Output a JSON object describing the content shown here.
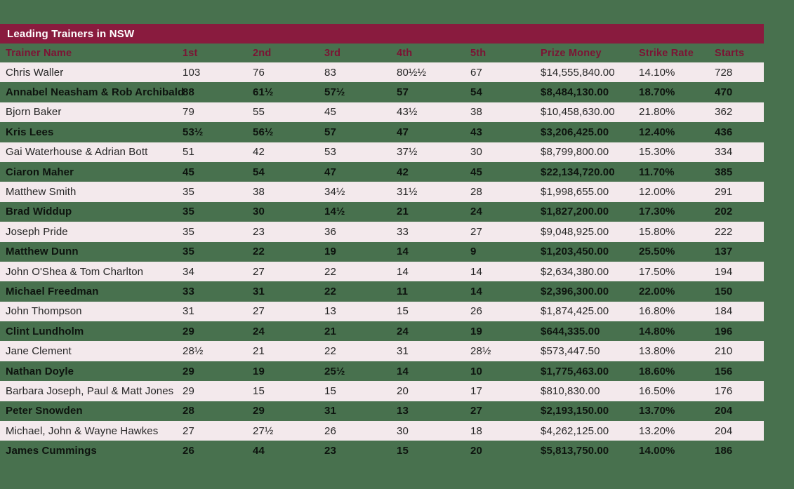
{
  "colors": {
    "background": "#48714e",
    "title_bar": "#891b3e",
    "title_text": "#ffffff",
    "header_text": "#7c1334",
    "row_light": "#f3e9ec",
    "row_light_text": "#262626",
    "row_dark_text": "#0d130e"
  },
  "chart_data": {
    "type": "table",
    "title": "Leading Trainers in NSW",
    "column_keys": [
      "trainer-name",
      "first",
      "second",
      "third",
      "fourth",
      "fifth",
      "prize-money",
      "strike-rate",
      "starts"
    ],
    "columns": [
      "Trainer Name",
      "1st",
      "2nd",
      "3rd",
      "4th",
      "5th",
      "Prize Money",
      "Strike Rate",
      "Starts"
    ],
    "rows": [
      [
        "Chris Waller",
        "103",
        "76",
        "83",
        "80½½",
        "67",
        "$14,555,840.00",
        "14.10%",
        "728"
      ],
      [
        "Annabel Neasham & Rob Archibald",
        "88",
        "61½",
        "57½",
        "57",
        "54",
        "$8,484,130.00",
        "18.70%",
        "470"
      ],
      [
        "Bjorn Baker",
        "79",
        "55",
        "45",
        "43½",
        "38",
        "$10,458,630.00",
        "21.80%",
        "362"
      ],
      [
        "Kris Lees",
        "53½",
        "56½",
        "57",
        "47",
        "43",
        "$3,206,425.00",
        "12.40%",
        "436"
      ],
      [
        "Gai Waterhouse & Adrian Bott",
        "51",
        "42",
        "53",
        "37½",
        "30",
        "$8,799,800.00",
        "15.30%",
        "334"
      ],
      [
        "Ciaron Maher",
        "45",
        "54",
        "47",
        "42",
        "45",
        "$22,134,720.00",
        "11.70%",
        "385"
      ],
      [
        "Matthew Smith",
        "35",
        "38",
        "34½",
        "31½",
        "28",
        "$1,998,655.00",
        "12.00%",
        "291"
      ],
      [
        "Brad Widdup",
        "35",
        "30",
        "14½",
        "21",
        "24",
        "$1,827,200.00",
        "17.30%",
        "202"
      ],
      [
        "Joseph Pride",
        "35",
        "23",
        "36",
        "33",
        "27",
        "$9,048,925.00",
        "15.80%",
        "222"
      ],
      [
        "Matthew Dunn",
        "35",
        "22",
        "19",
        "14",
        "9",
        "$1,203,450.00",
        "25.50%",
        "137"
      ],
      [
        "John O'Shea & Tom Charlton",
        "34",
        "27",
        "22",
        "14",
        "14",
        "$2,634,380.00",
        "17.50%",
        "194"
      ],
      [
        "Michael Freedman",
        "33",
        "31",
        "22",
        "11",
        "14",
        "$2,396,300.00",
        "22.00%",
        "150"
      ],
      [
        "John Thompson",
        "31",
        "27",
        "13",
        "15",
        "26",
        "$1,874,425.00",
        "16.80%",
        "184"
      ],
      [
        "Clint Lundholm",
        "29",
        "24",
        "21",
        "24",
        "19",
        "$644,335.00",
        "14.80%",
        "196"
      ],
      [
        "Jane Clement",
        "28½",
        "21",
        "22",
        "31",
        "28½",
        "$573,447.50",
        "13.80%",
        "210"
      ],
      [
        "Nathan Doyle",
        "29",
        "19",
        "25½",
        "14",
        "10",
        "$1,775,463.00",
        "18.60%",
        "156"
      ],
      [
        "Barbara Joseph, Paul & Matt Jones",
        "29",
        "15",
        "15",
        "20",
        "17",
        "$810,830.00",
        "16.50%",
        "176"
      ],
      [
        "Peter Snowden",
        "28",
        "29",
        "31",
        "13",
        "27",
        "$2,193,150.00",
        "13.70%",
        "204"
      ],
      [
        "Michael, John & Wayne Hawkes",
        "27",
        "27½",
        "26",
        "30",
        "18",
        "$4,262,125.00",
        "13.20%",
        "204"
      ],
      [
        "James Cummings",
        "26",
        "44",
        "23",
        "15",
        "20",
        "$5,813,750.00",
        "14.00%",
        "186"
      ]
    ]
  }
}
